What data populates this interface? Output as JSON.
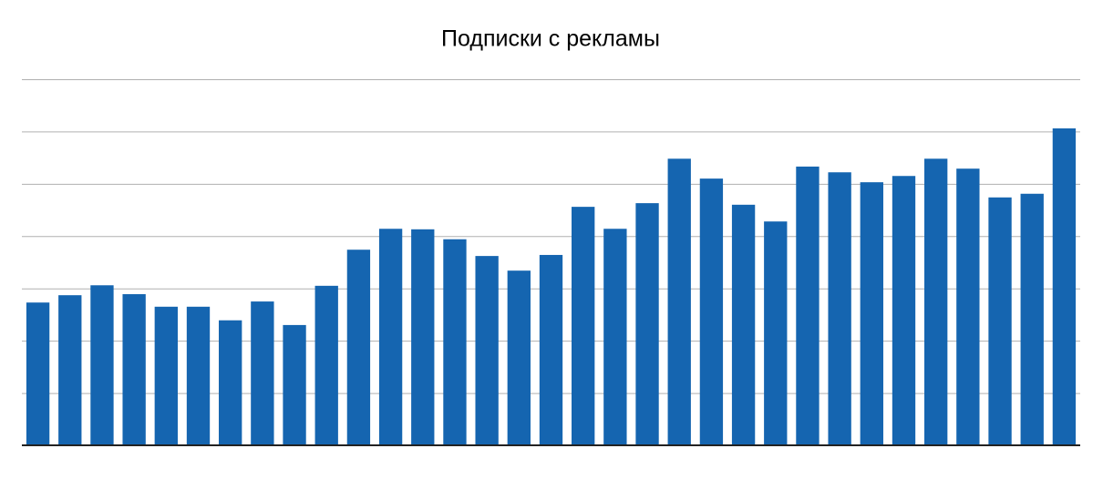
{
  "chart_data": {
    "type": "bar",
    "title": "Подписки с рекламы",
    "categories": [
      null,
      null,
      null,
      null,
      null,
      null,
      null,
      null,
      null,
      null,
      null,
      null,
      null,
      null,
      null,
      null,
      null,
      null,
      null,
      null,
      null,
      null,
      null,
      null,
      null,
      null,
      null,
      null,
      null,
      null,
      null,
      null,
      null
    ],
    "values": [
      2.73,
      2.87,
      3.06,
      2.89,
      2.65,
      2.65,
      2.39,
      2.75,
      2.3,
      3.05,
      3.74,
      4.14,
      4.13,
      3.94,
      3.62,
      3.34,
      3.64,
      4.56,
      4.14,
      4.63,
      5.48,
      5.1,
      4.6,
      4.28,
      5.33,
      5.22,
      5.03,
      5.15,
      5.48,
      5.29,
      4.74,
      4.81,
      6.06
    ],
    "color": "#1565b0",
    "ylim": [
      0,
      7
    ],
    "yticks": [
      0,
      1,
      2,
      3,
      4,
      5,
      6,
      7
    ],
    "grid": true,
    "tick_labels": false
  }
}
